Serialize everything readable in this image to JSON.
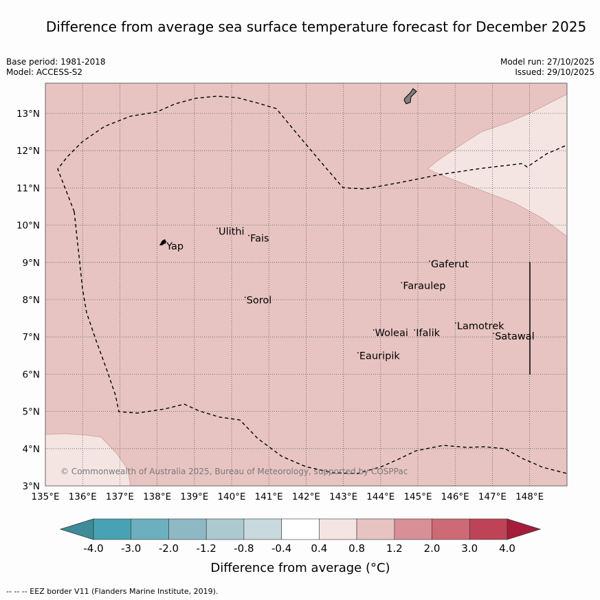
{
  "title": "Difference from average sea surface temperature forecast for December 2025",
  "header": {
    "base_period": "Base period: 1981-2018",
    "model": "Model: ACCESS-S2",
    "model_run": "Model run: 27/10/2025",
    "issued": "Issued: 29/10/2025"
  },
  "map": {
    "lon_ticks": [
      "135°E",
      "136°E",
      "137°E",
      "138°E",
      "139°E",
      "140°E",
      "141°E",
      "142°E",
      "143°E",
      "144°E",
      "145°E",
      "146°E",
      "147°E",
      "148°E"
    ],
    "lat_ticks": [
      "3°N",
      "4°N",
      "5°N",
      "6°N",
      "7°N",
      "8°N",
      "9°N",
      "10°N",
      "11°N",
      "12°N",
      "13°N"
    ],
    "places": [
      {
        "name": "Ulithi",
        "lon": 139.65,
        "lat": 9.84
      },
      {
        "name": "Fais",
        "lon": 140.5,
        "lat": 9.65
      },
      {
        "name": "Yap",
        "lon": 138.25,
        "lat": 9.44
      },
      {
        "name": "Gaferut",
        "lon": 145.35,
        "lat": 8.96
      },
      {
        "name": "Faraulep",
        "lon": 144.6,
        "lat": 8.38
      },
      {
        "name": "Sorol",
        "lon": 140.4,
        "lat": 7.99
      },
      {
        "name": "Lamotrek",
        "lon": 146.05,
        "lat": 7.3
      },
      {
        "name": "Woleai",
        "lon": 143.85,
        "lat": 7.11
      },
      {
        "name": "Ifalik",
        "lon": 144.95,
        "lat": 7.11
      },
      {
        "name": "Satawal",
        "lon": 147.07,
        "lat": 7.02
      },
      {
        "name": "Eauripik",
        "lon": 143.43,
        "lat": 6.5
      }
    ],
    "copyright": "© Commonwealth of Australia 2025, Bureau of Meteorology, supported by COSPPac",
    "background_color": "#e7c4c1",
    "light_color": "#f4e5e3"
  },
  "colorbar": {
    "label": "Difference from average (°C)",
    "ticks": [
      "-4.0",
      "-3.0",
      "-2.0",
      "-1.2",
      "-0.8",
      "-0.4",
      "0.4",
      "0.8",
      "1.2",
      "2.0",
      "3.0",
      "4.0"
    ],
    "colors": [
      "#3e8c99",
      "#48a2b3",
      "#6cafbe",
      "#8db8c4",
      "#abc9cf",
      "#c8dade",
      "#ffffff",
      "#f4e5e3",
      "#e7c4c1",
      "#d88f95",
      "#cd6a75",
      "#bd4456",
      "#a61c3a"
    ]
  },
  "footnote": "-- -- -- EEZ border V11 (Flanders Marine Institute, 2019)."
}
